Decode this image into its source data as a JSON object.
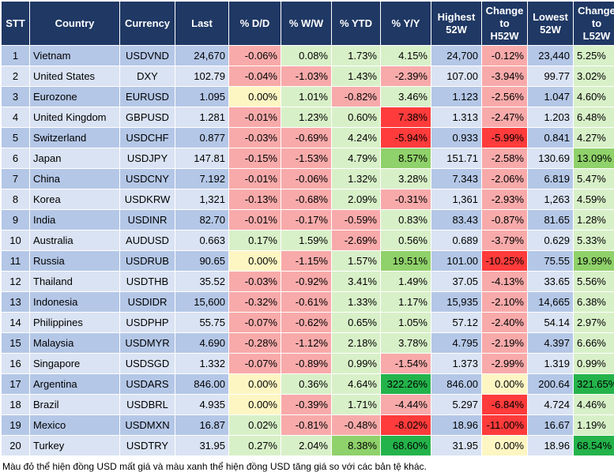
{
  "headers": [
    "STT",
    "Country",
    "Currency",
    "Last",
    "% D/D",
    "% W/W",
    "% YTD",
    "% Y/Y",
    "Highest 52W",
    "Change to H52W",
    "Lowest 52W",
    "Change to L52W"
  ],
  "colors": {
    "header_bg": "#1f3864",
    "row_odd": "#b4c7e7",
    "row_even": "#dae3f3",
    "lt_red": "#f8aaaa",
    "red": "#ff3b3b",
    "lt_green": "#d8f0c8",
    "green": "#8fd16a",
    "dk_green": "#24b34b",
    "lt_yellow": "#fdf6c3"
  },
  "rows": [
    {
      "stt": "1",
      "country": "Vietnam",
      "currency": "USDVND",
      "last": "24,670",
      "dd": "-0.06%",
      "ww": "0.08%",
      "ytd": "1.73%",
      "yy": "4.15%",
      "h52": "24,700",
      "ch52": "-0.12%",
      "l52": "23,440",
      "cl52": "5.25%",
      "styles": [
        "lr",
        "lg",
        "lg",
        "lg",
        "lr",
        "lg"
      ]
    },
    {
      "stt": "2",
      "country": "United States",
      "currency": "DXY",
      "last": "102.79",
      "dd": "-0.04%",
      "ww": "-1.03%",
      "ytd": "1.43%",
      "yy": "-2.39%",
      "h52": "107.00",
      "ch52": "-3.94%",
      "l52": "99.77",
      "cl52": "3.02%",
      "styles": [
        "lr",
        "lr",
        "lg",
        "lr",
        "lr",
        "lg"
      ]
    },
    {
      "stt": "3",
      "country": "Eurozone",
      "currency": "EURUSD",
      "last": "1.095",
      "dd": "0.00%",
      "ww": "1.01%",
      "ytd": "-0.82%",
      "yy": "3.46%",
      "h52": "1.123",
      "ch52": "-2.56%",
      "l52": "1.047",
      "cl52": "4.60%",
      "styles": [
        "ly",
        "lg",
        "lr",
        "lg",
        "lr",
        "lg"
      ]
    },
    {
      "stt": "4",
      "country": "United Kingdom",
      "currency": "GBPUSD",
      "last": "1.281",
      "dd": "-0.01%",
      "ww": "1.23%",
      "ytd": "0.60%",
      "yy": "7.38%",
      "h52": "1.313",
      "ch52": "-2.47%",
      "l52": "1.203",
      "cl52": "6.48%",
      "styles": [
        "lr",
        "lg",
        "lg",
        "r",
        "lr",
        "lg"
      ]
    },
    {
      "stt": "5",
      "country": "Switzerland",
      "currency": "USDCHF",
      "last": "0.877",
      "dd": "-0.03%",
      "ww": "-0.69%",
      "ytd": "4.24%",
      "yy": "-5.94%",
      "h52": "0.933",
      "ch52": "-5.99%",
      "l52": "0.841",
      "cl52": "4.27%",
      "styles": [
        "lr",
        "lr",
        "lg",
        "r",
        "r",
        "lg"
      ]
    },
    {
      "stt": "6",
      "country": "Japan",
      "currency": "USDJPY",
      "last": "147.81",
      "dd": "-0.15%",
      "ww": "-1.53%",
      "ytd": "4.79%",
      "yy": "8.57%",
      "h52": "151.71",
      "ch52": "-2.58%",
      "l52": "130.69",
      "cl52": "13.09%",
      "styles": [
        "lr",
        "lr",
        "lg",
        "g",
        "lr",
        "g"
      ]
    },
    {
      "stt": "7",
      "country": "China",
      "currency": "USDCNY",
      "last": "7.192",
      "dd": "-0.01%",
      "ww": "-0.06%",
      "ytd": "1.32%",
      "yy": "3.28%",
      "h52": "7.343",
      "ch52": "-2.06%",
      "l52": "6.819",
      "cl52": "5.47%",
      "styles": [
        "lr",
        "lr",
        "lg",
        "lg",
        "lr",
        "lg"
      ]
    },
    {
      "stt": "8",
      "country": "Korea",
      "currency": "USDKRW",
      "last": "1,321",
      "dd": "-0.13%",
      "ww": "-0.68%",
      "ytd": "2.09%",
      "yy": "-0.31%",
      "h52": "1,361",
      "ch52": "-2.93%",
      "l52": "1,263",
      "cl52": "4.59%",
      "styles": [
        "lr",
        "lr",
        "lg",
        "lr",
        "lr",
        "lg"
      ]
    },
    {
      "stt": "9",
      "country": "India",
      "currency": "USDINR",
      "last": "82.70",
      "dd": "-0.01%",
      "ww": "-0.17%",
      "ytd": "-0.59%",
      "yy": "0.83%",
      "h52": "83.43",
      "ch52": "-0.87%",
      "l52": "81.65",
      "cl52": "1.28%",
      "styles": [
        "lr",
        "lr",
        "lr",
        "lg",
        "lr",
        "lg"
      ]
    },
    {
      "stt": "10",
      "country": "Australia",
      "currency": "AUDUSD",
      "last": "0.663",
      "dd": "0.17%",
      "ww": "1.59%",
      "ytd": "-2.69%",
      "yy": "0.56%",
      "h52": "0.689",
      "ch52": "-3.79%",
      "l52": "0.629",
      "cl52": "5.33%",
      "styles": [
        "lg",
        "lg",
        "lr",
        "lg",
        "lr",
        "lg"
      ]
    },
    {
      "stt": "11",
      "country": "Russia",
      "currency": "USDRUB",
      "last": "90.65",
      "dd": "0.00%",
      "ww": "-1.15%",
      "ytd": "1.57%",
      "yy": "19.51%",
      "h52": "101.00",
      "ch52": "-10.25%",
      "l52": "75.55",
      "cl52": "19.99%",
      "styles": [
        "ly",
        "lr",
        "lg",
        "g",
        "r",
        "g"
      ]
    },
    {
      "stt": "12",
      "country": "Thailand",
      "currency": "USDTHB",
      "last": "35.52",
      "dd": "-0.03%",
      "ww": "-0.92%",
      "ytd": "3.41%",
      "yy": "1.49%",
      "h52": "37.05",
      "ch52": "-4.13%",
      "l52": "33.65",
      "cl52": "5.56%",
      "styles": [
        "lr",
        "lr",
        "lg",
        "lg",
        "lr",
        "lg"
      ]
    },
    {
      "stt": "13",
      "country": "Indonesia",
      "currency": "USDIDR",
      "last": "15,600",
      "dd": "-0.32%",
      "ww": "-0.61%",
      "ytd": "1.33%",
      "yy": "1.17%",
      "h52": "15,935",
      "ch52": "-2.10%",
      "l52": "14,665",
      "cl52": "6.38%",
      "styles": [
        "lr",
        "lr",
        "lg",
        "lg",
        "lr",
        "lg"
      ]
    },
    {
      "stt": "14",
      "country": "Philippines",
      "currency": "USDPHP",
      "last": "55.75",
      "dd": "-0.07%",
      "ww": "-0.62%",
      "ytd": "0.65%",
      "yy": "1.05%",
      "h52": "57.12",
      "ch52": "-2.40%",
      "l52": "54.14",
      "cl52": "2.97%",
      "styles": [
        "lr",
        "lr",
        "lg",
        "lg",
        "lr",
        "lg"
      ]
    },
    {
      "stt": "15",
      "country": "Malaysia",
      "currency": "USDMYR",
      "last": "4.690",
      "dd": "-0.28%",
      "ww": "-1.12%",
      "ytd": "2.18%",
      "yy": "3.78%",
      "h52": "4.795",
      "ch52": "-2.19%",
      "l52": "4.397",
      "cl52": "6.66%",
      "styles": [
        "lr",
        "lr",
        "lg",
        "lg",
        "lr",
        "lg"
      ]
    },
    {
      "stt": "16",
      "country": "Singapore",
      "currency": "USDSGD",
      "last": "1.332",
      "dd": "-0.07%",
      "ww": "-0.89%",
      "ytd": "0.99%",
      "yy": "-1.54%",
      "h52": "1.373",
      "ch52": "-2.99%",
      "l52": "1.319",
      "cl52": "0.99%",
      "styles": [
        "lr",
        "lr",
        "lg",
        "lr",
        "lr",
        "lg"
      ]
    },
    {
      "stt": "17",
      "country": "Argentina",
      "currency": "USDARS",
      "last": "846.00",
      "dd": "0.00%",
      "ww": "0.36%",
      "ytd": "4.64%",
      "yy": "322.26%",
      "h52": "846.00",
      "ch52": "0.00%",
      "l52": "200.64",
      "cl52": "321.65%",
      "styles": [
        "ly",
        "lg",
        "lg",
        "dg",
        "ly",
        "dg"
      ]
    },
    {
      "stt": "18",
      "country": "Brazil",
      "currency": "USDBRL",
      "last": "4.935",
      "dd": "0.00%",
      "ww": "-0.39%",
      "ytd": "1.71%",
      "yy": "-4.44%",
      "h52": "5.297",
      "ch52": "-6.84%",
      "l52": "4.724",
      "cl52": "4.46%",
      "styles": [
        "ly",
        "lr",
        "lg",
        "lr",
        "r",
        "lg"
      ]
    },
    {
      "stt": "19",
      "country": "Mexico",
      "currency": "USDMXN",
      "last": "16.87",
      "dd": "0.02%",
      "ww": "-0.81%",
      "ytd": "-0.48%",
      "yy": "-8.02%",
      "h52": "18.96",
      "ch52": "-11.00%",
      "l52": "16.67",
      "cl52": "1.19%",
      "styles": [
        "lg",
        "lr",
        "lr",
        "r",
        "r",
        "lg"
      ]
    },
    {
      "stt": "20",
      "country": "Turkey",
      "currency": "USDTRY",
      "last": "31.95",
      "dd": "0.27%",
      "ww": "2.04%",
      "ytd": "8.38%",
      "yy": "68.60%",
      "h52": "31.95",
      "ch52": "0.00%",
      "l52": "18.96",
      "cl52": "68.54%",
      "styles": [
        "lg",
        "lg",
        "g",
        "dg",
        "ly",
        "dg"
      ]
    }
  ],
  "note": "Màu đỏ thể hiện đồng USD mất giá và màu xanh thể hiện đồng USD tăng giá so với các bản tệ khác."
}
